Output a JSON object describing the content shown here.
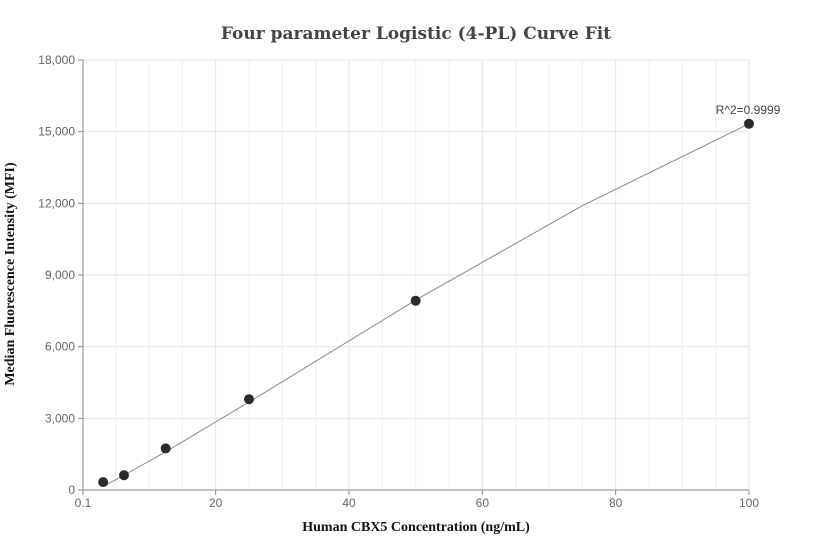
{
  "chart_data": {
    "type": "scatter",
    "title": "Four parameter Logistic (4-PL) Curve Fit",
    "xlabel": "Human CBX5 Concentration (ng/mL)",
    "ylabel": "Median Fluorescence Intensity (MFI)",
    "xlim": [
      0.1,
      100
    ],
    "ylim": [
      0,
      18000
    ],
    "x_ticks": [
      0.1,
      20,
      40,
      60,
      80,
      100
    ],
    "x_tick_labels": [
      "0.1",
      "20",
      "40",
      "60",
      "80",
      "100"
    ],
    "y_ticks": [
      0,
      3000,
      6000,
      9000,
      12000,
      15000,
      18000
    ],
    "y_tick_labels": [
      "0",
      "3,000",
      "6,000",
      "9,000",
      "12,000",
      "15,000",
      "18,000"
    ],
    "grid": true,
    "series": [
      {
        "x": [
          3.125,
          6.25,
          12.5,
          25,
          50,
          100
        ],
        "y": [
          330,
          620,
          1740,
          3800,
          7920,
          15330
        ]
      }
    ],
    "fit_curve": {
      "x": [
        3.125,
        6.25,
        12.5,
        25,
        50,
        75,
        100
      ],
      "y": [
        150,
        620,
        1600,
        3680,
        7950,
        11900,
        15330
      ]
    },
    "annotation": "R^2=0.9999",
    "colors": {
      "point": "#2b2b2b",
      "curve": "#888888",
      "grid": "#e6e6e6",
      "axis": "#888888"
    }
  }
}
